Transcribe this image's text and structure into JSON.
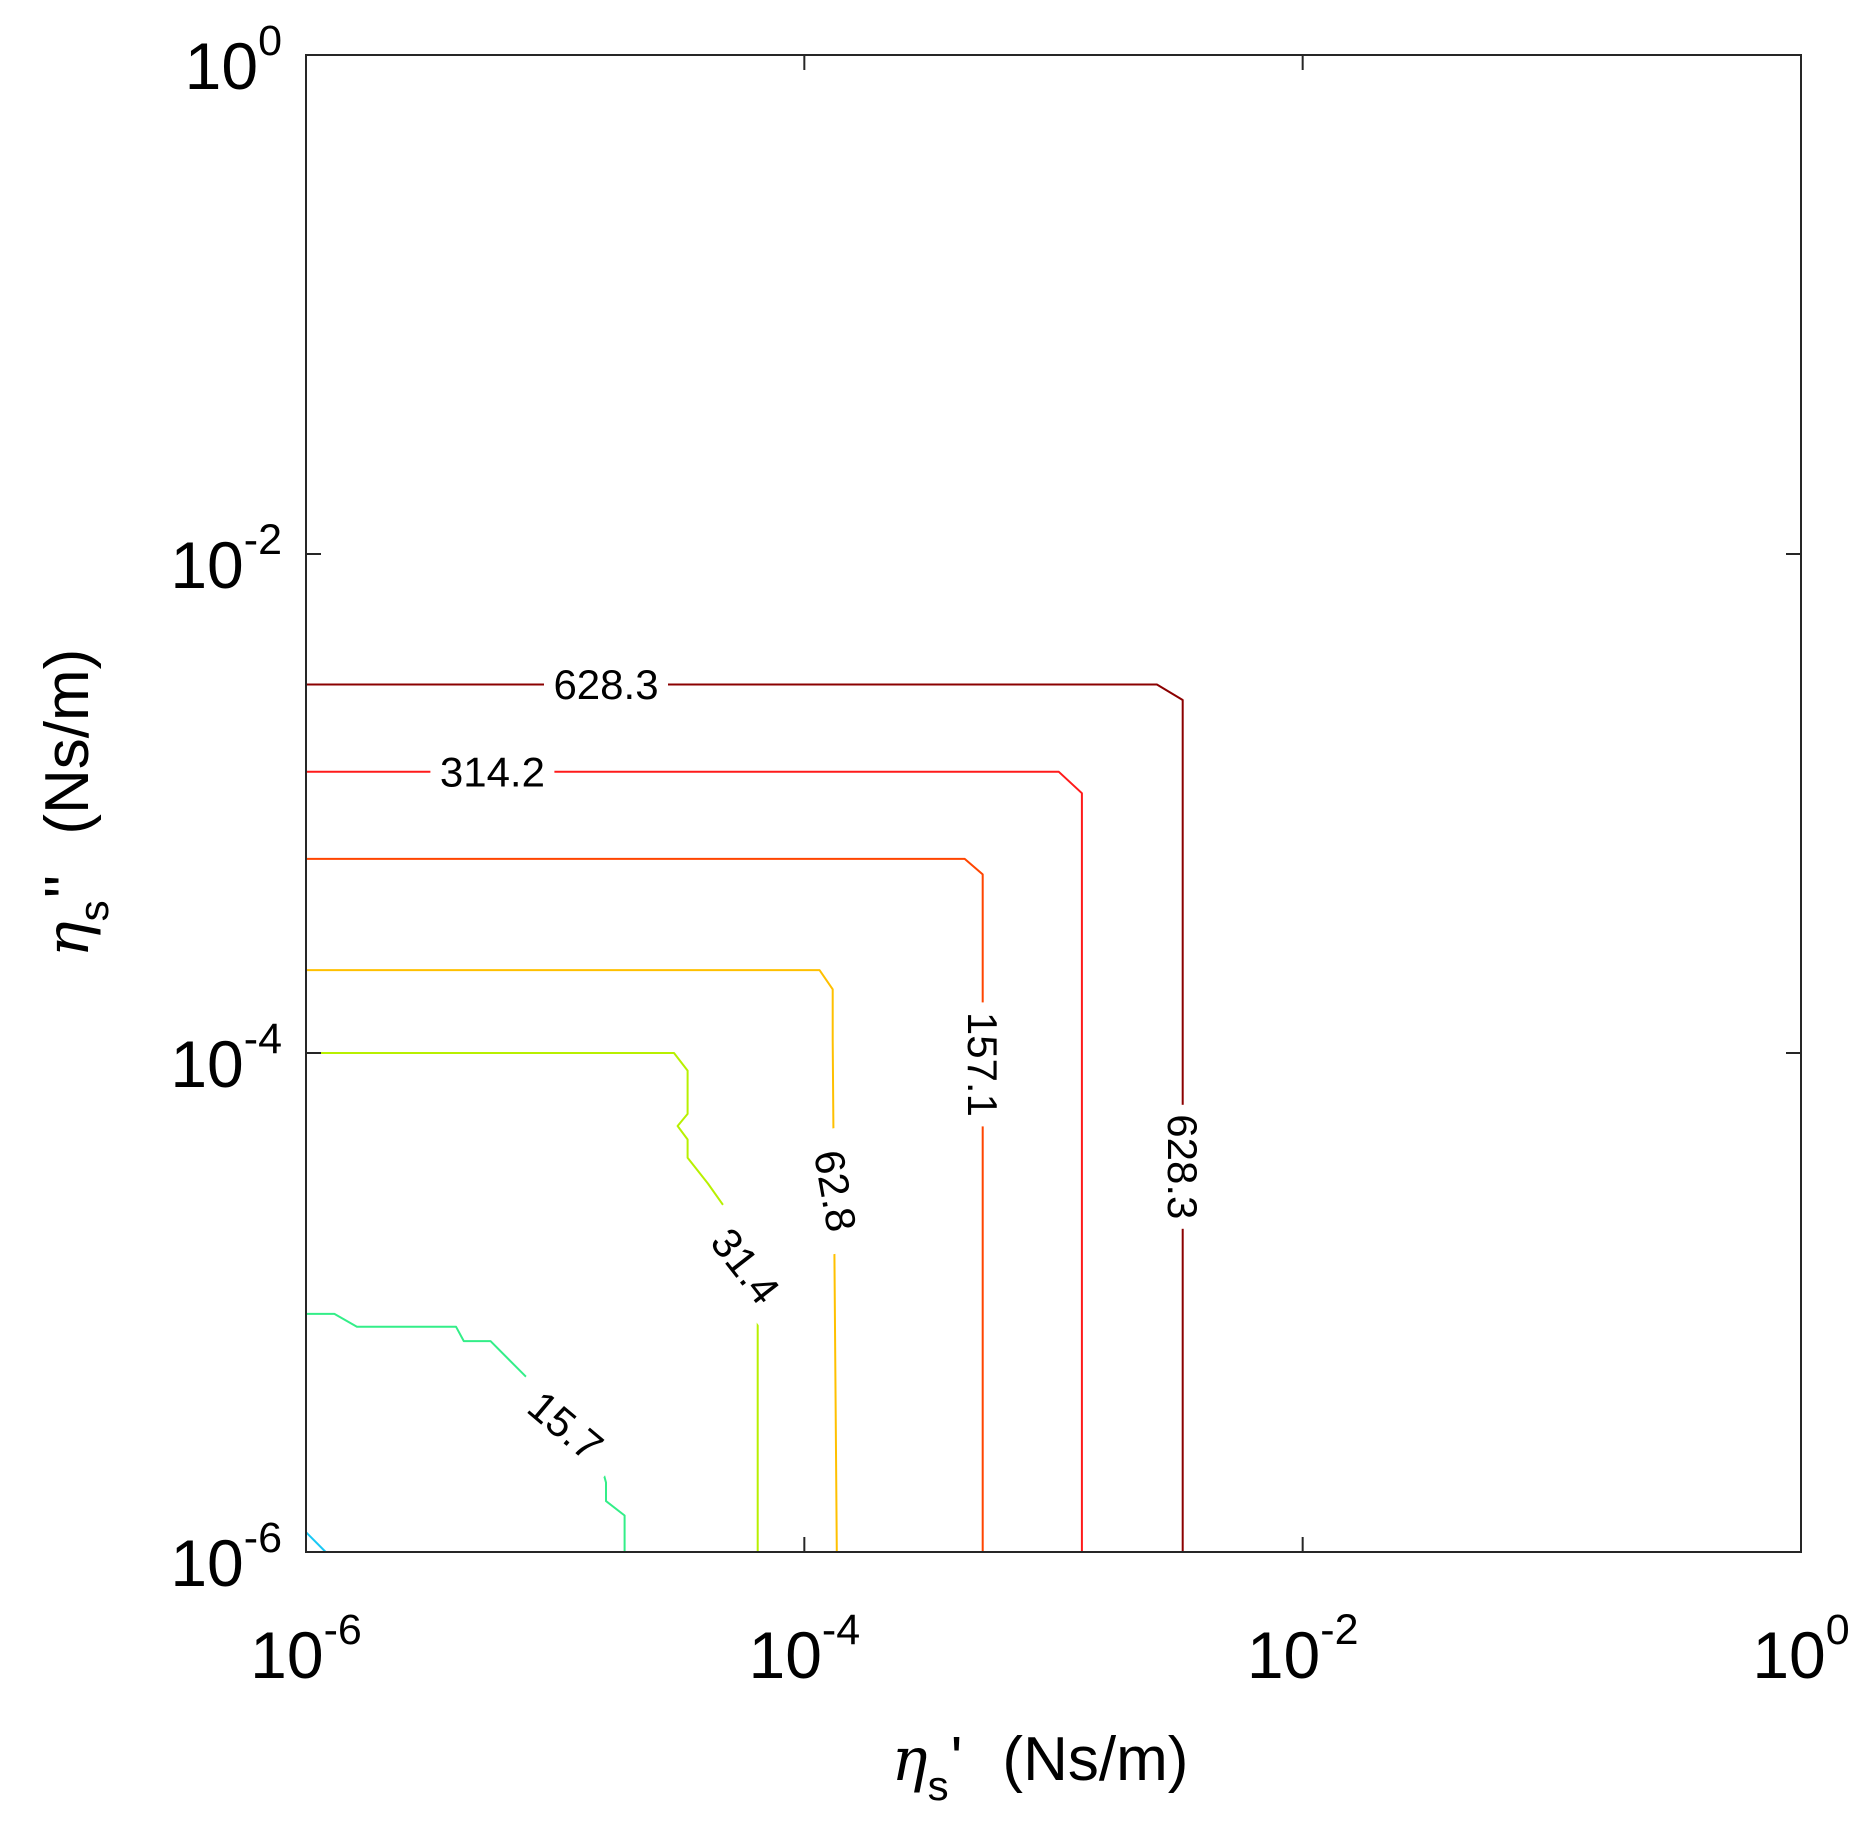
{
  "chart_data": {
    "type": "contour",
    "xscale": "log",
    "yscale": "log",
    "xlim": [
      1e-06,
      1
    ],
    "ylim": [
      1e-06,
      1
    ],
    "x_ticks": [
      {
        "base": "10",
        "exp": "-6"
      },
      {
        "base": "10",
        "exp": "-4"
      },
      {
        "base": "10",
        "exp": "-2"
      },
      {
        "base": "10",
        "exp": "0"
      }
    ],
    "y_ticks": [
      {
        "base": "10",
        "exp": "-6"
      },
      {
        "base": "10",
        "exp": "-4"
      },
      {
        "base": "10",
        "exp": "-2"
      },
      {
        "base": "10",
        "exp": "0"
      }
    ],
    "xlabel": {
      "symbol": "η",
      "sub": "s",
      "prime": "'",
      "unit": "(Ns/m)"
    },
    "ylabel": {
      "symbol": "η",
      "sub": "s",
      "prime": "''",
      "unit": "(Ns/m)"
    },
    "grid": false,
    "contours": [
      {
        "level": "628.3",
        "color": "#8b0000",
        "points": [
          [
            1e-06,
            0.003
          ],
          [
            0.0026,
            0.003
          ],
          [
            0.0033,
            0.0026
          ],
          [
            0.0033,
            1e-06
          ]
        ],
        "labels": [
          {
            "text": "628.3",
            "x": 1.6e-05,
            "y": 0.003,
            "rotate": 0
          },
          {
            "text": "628.3",
            "x": 0.0033,
            "y": 3.5e-05,
            "rotate": 90
          }
        ]
      },
      {
        "level": "314.2",
        "color": "#ff1a1a",
        "points": [
          [
            1e-06,
            0.00134
          ],
          [
            0.00105,
            0.00134
          ],
          [
            0.0013,
            0.0011
          ],
          [
            0.0013,
            1e-06
          ]
        ],
        "labels": [
          {
            "text": "314.2",
            "x": 5.6e-06,
            "y": 0.00134,
            "rotate": 0
          }
        ]
      },
      {
        "level": "157.1",
        "color": "#ff4500",
        "points": [
          [
            1e-06,
            0.0006
          ],
          [
            0.00044,
            0.0006
          ],
          [
            0.00052,
            0.00052
          ],
          [
            0.00052,
            1e-06
          ]
        ],
        "labels": [
          {
            "text": "157.1",
            "x": 0.00052,
            "y": 9e-05,
            "rotate": 90
          }
        ]
      },
      {
        "level": "62.8",
        "color": "#ffc000",
        "points": [
          [
            1e-06,
            0.000215
          ],
          [
            0.000115,
            0.000215
          ],
          [
            0.00013,
            0.00018
          ],
          [
            0.00013,
            0.000113
          ],
          [
            0.000135,
            1e-06
          ]
        ],
        "labels": [
          {
            "text": "62.8",
            "x": 0.000133,
            "y": 2.8e-05,
            "rotate": 80
          }
        ]
      },
      {
        "level": "31.4",
        "color": "#b8f000",
        "points": [
          [
            1e-06,
            0.0001
          ],
          [
            3e-05,
            0.0001
          ],
          [
            3.4e-05,
            8.5e-05
          ],
          [
            3.4e-05,
            5.7e-05
          ],
          [
            3.1e-05,
            5.1e-05
          ],
          [
            3.4e-05,
            4.5e-05
          ],
          [
            3.4e-05,
            3.8e-05
          ],
          [
            4.1e-05,
            3e-05
          ],
          [
            4.8e-05,
            2.4e-05
          ],
          [
            5e-05,
            2e-05
          ],
          [
            6e-05,
            1.5e-05
          ],
          [
            6.5e-05,
            8.8e-06
          ],
          [
            6.5e-05,
            1e-06
          ]
        ],
        "labels": [
          {
            "text": "31.4",
            "x": 5.8e-05,
            "y": 1.4e-05,
            "rotate": 52
          }
        ]
      },
      {
        "level": "15.7",
        "color": "#33ee88",
        "points": [
          [
            1e-06,
            9e-06
          ],
          [
            1.3e-06,
            9e-06
          ],
          [
            1.6e-06,
            8e-06
          ],
          [
            4e-06,
            8e-06
          ],
          [
            4.3e-06,
            7e-06
          ],
          [
            5.5e-06,
            7e-06
          ],
          [
            7e-06,
            5.5e-06
          ],
          [
            1.1e-05,
            3.5e-06
          ],
          [
            1.5e-05,
            2.4e-06
          ],
          [
            1.6e-05,
            1.9e-06
          ],
          [
            1.6e-05,
            1.6e-06
          ],
          [
            1.9e-05,
            1.4e-06
          ],
          [
            1.9e-05,
            1e-06
          ]
        ],
        "labels": [
          {
            "text": "15.7",
            "x": 1.1e-05,
            "y": 3.2e-06,
            "rotate": 40
          }
        ]
      },
      {
        "level": "",
        "color": "#19c8f5",
        "points": [
          [
            1e-06,
            1.2e-06
          ],
          [
            1.2e-06,
            1e-06
          ]
        ],
        "labels": []
      }
    ]
  }
}
